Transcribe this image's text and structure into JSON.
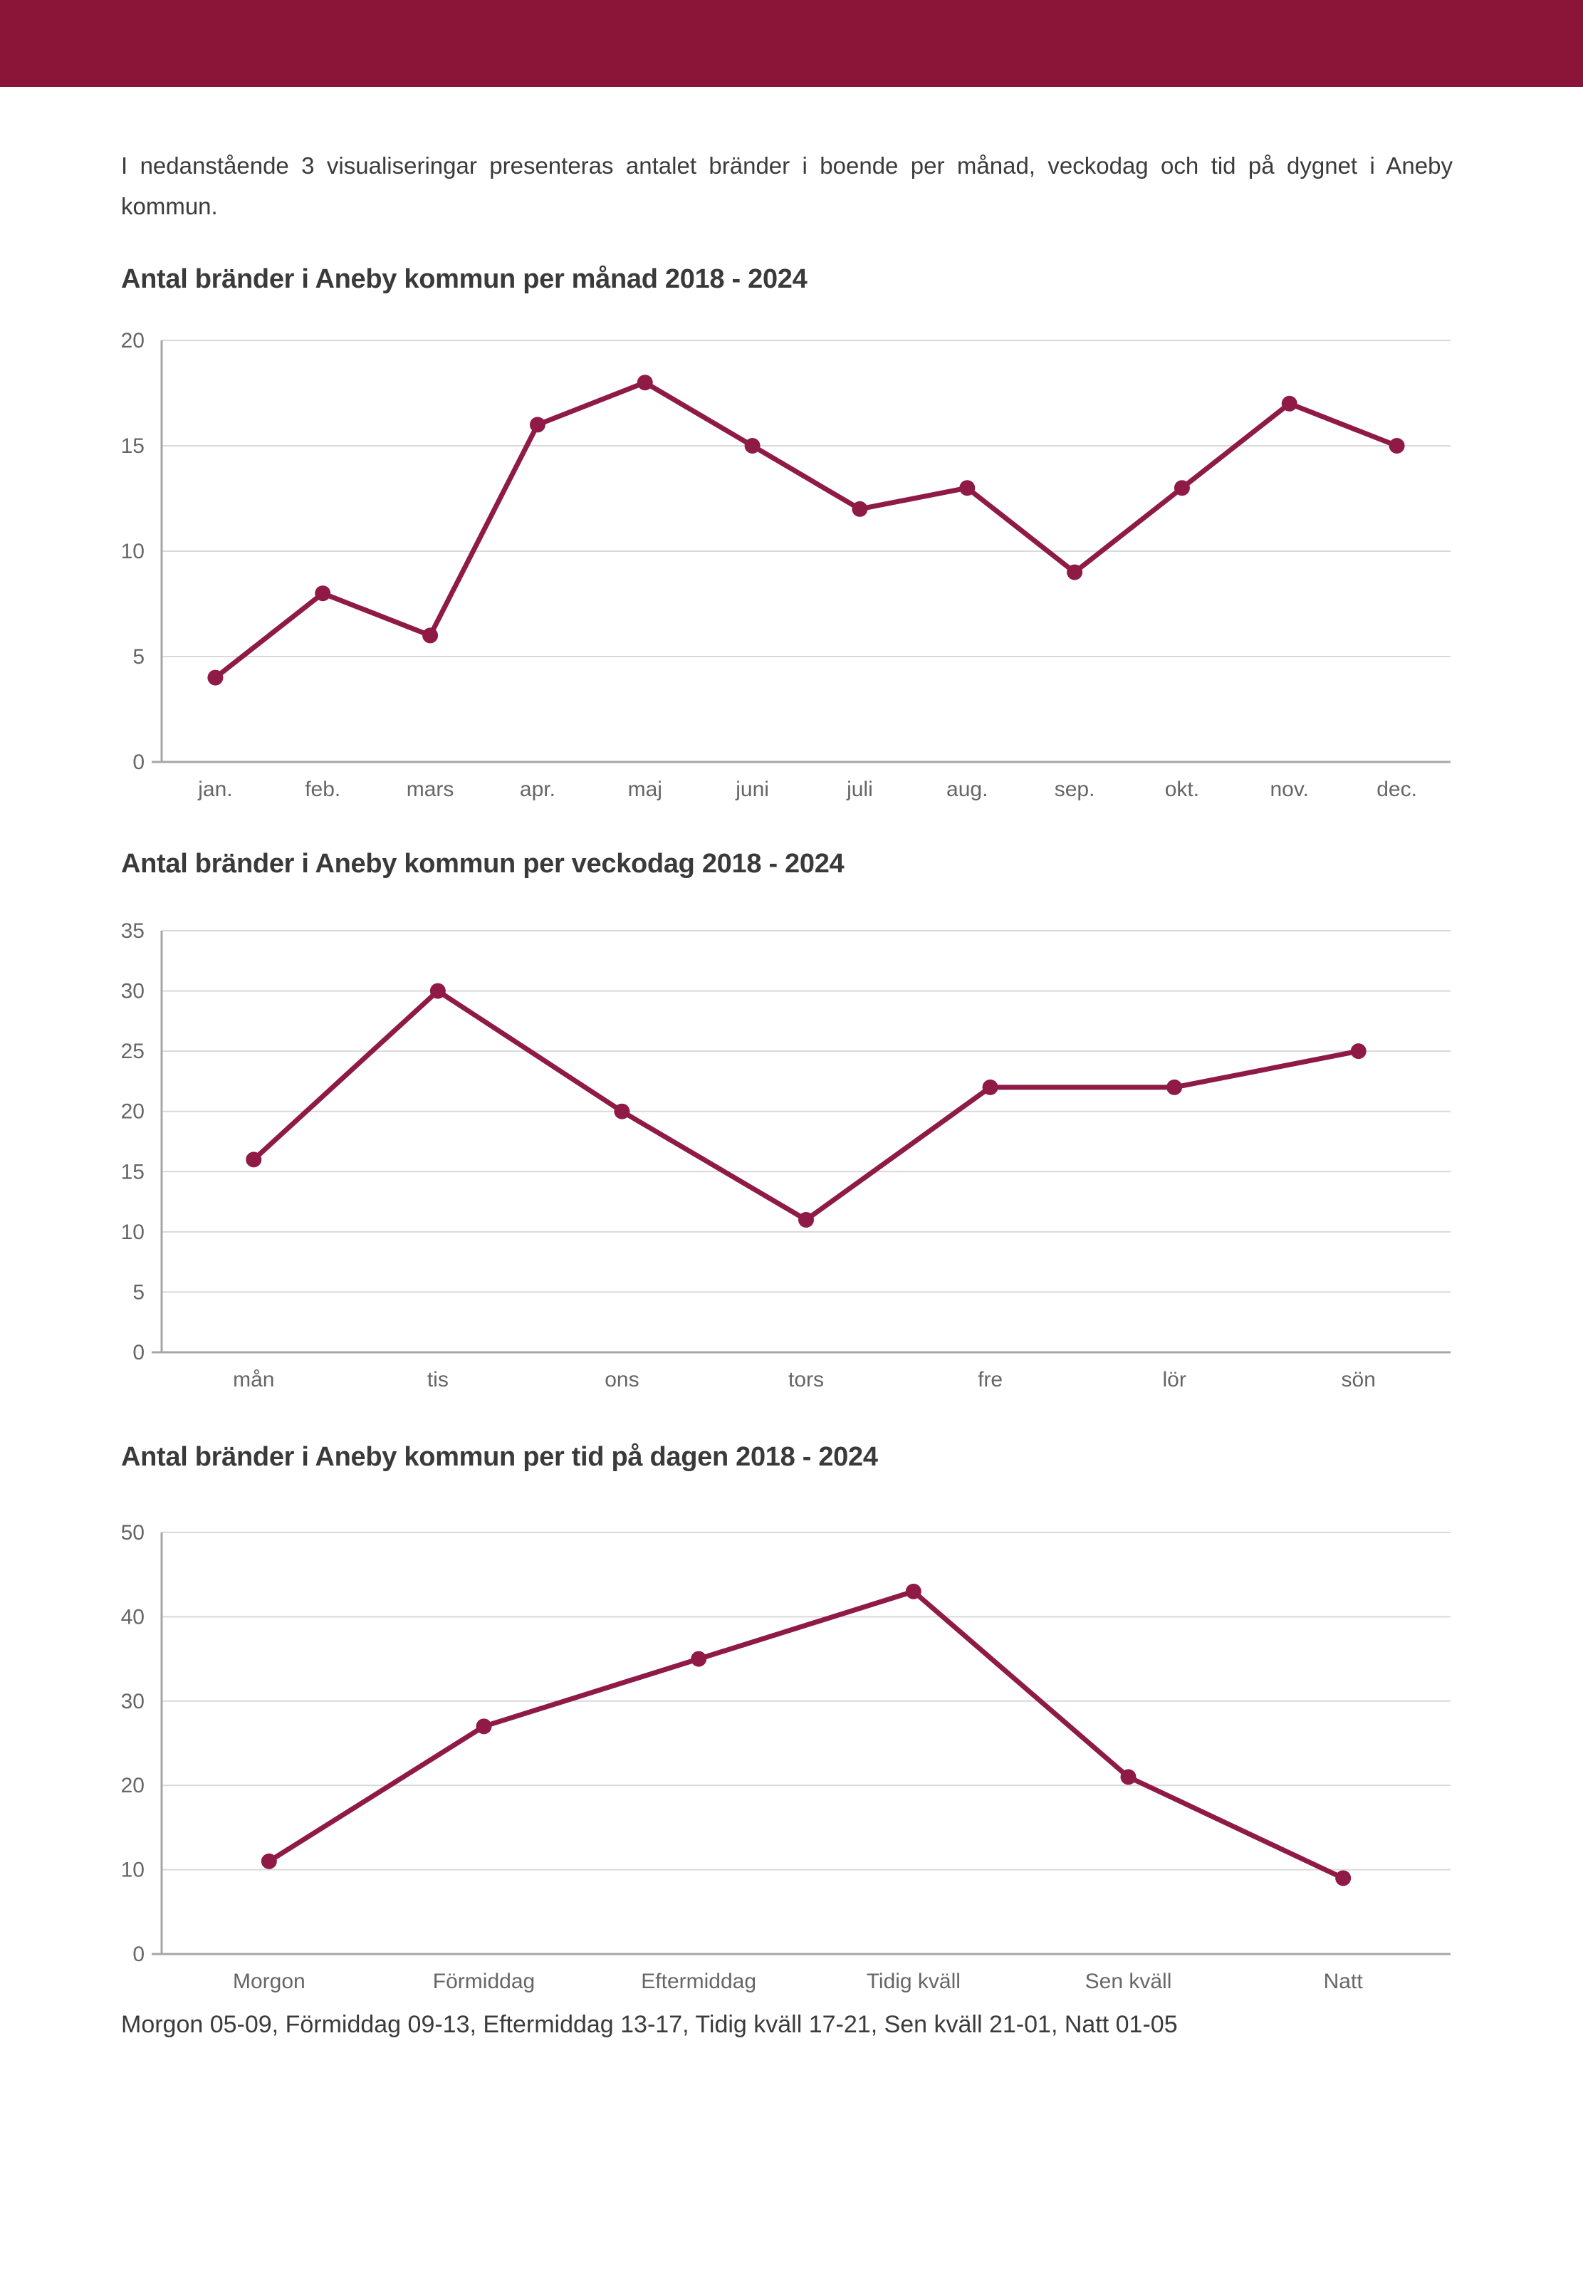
{
  "page": {
    "intro": "I nedanstående 3 visualiseringar presenteras antalet bränder i boende per månad, veckodag och tid på dygnet i Aneby kommun.",
    "footer_note": "Morgon 05-09, Förmiddag 09-13, Eftermiddag 13-17, Tidig kväll 17-21, Sen kväll 21-01, Natt 01-05"
  },
  "colors": {
    "header_bar": "#8A1538",
    "line": "#8E1A45",
    "gridline": "#D9D9D9",
    "axis": "#A6A6A6",
    "tick_label": "#666666",
    "text": "#3B3B3B"
  },
  "chart_data": [
    {
      "type": "line",
      "title": "Antal bränder i Aneby kommun per månad 2018 - 2024",
      "categories": [
        "jan.",
        "feb.",
        "mars",
        "apr.",
        "maj",
        "juni",
        "juli",
        "aug.",
        "sep.",
        "okt.",
        "nov.",
        "dec."
      ],
      "values": [
        4,
        8,
        6,
        16,
        18,
        15,
        12,
        13,
        9,
        13,
        17,
        15
      ],
      "xlabel": "",
      "ylabel": "",
      "ylim": [
        0,
        20
      ],
      "ystep": 5,
      "grid": true,
      "legend": "none"
    },
    {
      "type": "line",
      "title": "Antal bränder i Aneby kommun per veckodag 2018 - 2024",
      "categories": [
        "mån",
        "tis",
        "ons",
        "tors",
        "fre",
        "lör",
        "sön"
      ],
      "values": [
        16,
        30,
        20,
        11,
        22,
        22,
        25
      ],
      "xlabel": "",
      "ylabel": "",
      "ylim": [
        0,
        35
      ],
      "ystep": 5,
      "grid": true,
      "legend": "none"
    },
    {
      "type": "line",
      "title": "Antal bränder i Aneby kommun per tid på dagen 2018 - 2024",
      "categories": [
        "Morgon",
        "Förmiddag",
        "Eftermiddag",
        "Tidig kväll",
        "Sen kväll",
        "Natt"
      ],
      "values": [
        11,
        27,
        35,
        43,
        21,
        9
      ],
      "xlabel": "",
      "ylabel": "",
      "ylim": [
        0,
        50
      ],
      "ystep": 10,
      "grid": true,
      "legend": "none"
    }
  ]
}
